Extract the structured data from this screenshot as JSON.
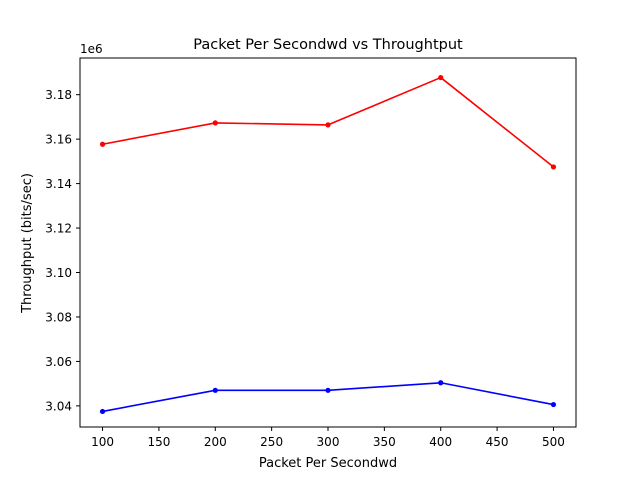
{
  "chart_data": {
    "type": "line",
    "title": "Packet Per Secondwd vs Throughtput",
    "xlabel": "Packet Per Secondwd",
    "ylabel": "Throughput (bits/sec)",
    "y_offset_label": "1e6",
    "xlim": [
      80,
      520
    ],
    "ylim": [
      3.0305,
      3.1965
    ],
    "x_ticks": [
      100,
      150,
      200,
      250,
      300,
      350,
      400,
      450,
      500
    ],
    "y_ticks": [
      3.04,
      3.06,
      3.08,
      3.1,
      3.12,
      3.14,
      3.16,
      3.18
    ],
    "x": [
      100,
      200,
      300,
      400,
      500
    ],
    "grid": false,
    "series": [
      {
        "color": "#ff0000",
        "marker": "dot",
        "values": [
          3.1577,
          3.1673,
          3.1664,
          3.1877,
          3.1475
        ]
      },
      {
        "color": "#0000ff",
        "marker": "dot",
        "values": [
          3.0375,
          3.047,
          3.047,
          3.0504,
          3.0406
        ]
      }
    ]
  }
}
